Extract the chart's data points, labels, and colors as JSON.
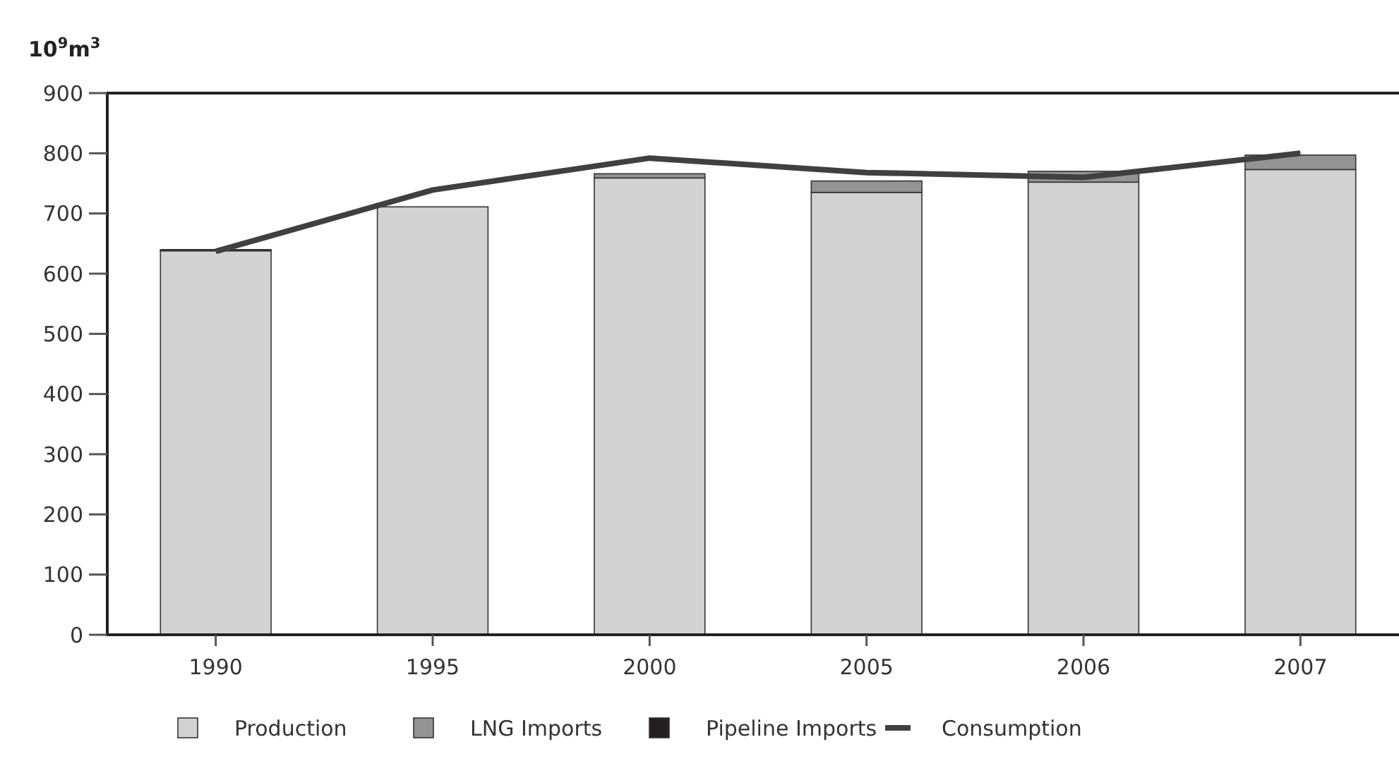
{
  "chart_data": {
    "type": "bar",
    "stacked": true,
    "ylabel": "10$^{9}$m$^{3}$",
    "categories": [
      "1990",
      "1995",
      "2000",
      "2005",
      "2006",
      "2007"
    ],
    "series": [
      {
        "name": "Production",
        "color": "#d1d2d4",
        "values": [
          638,
          711,
          759,
          735,
          752,
          773
        ]
      },
      {
        "name": "LNG Imports",
        "color": "#939393",
        "values": [
          0,
          0,
          7,
          19,
          18,
          24
        ]
      },
      {
        "name": "Pipeline Imports",
        "color": "#231f20",
        "values": [
          2,
          0,
          0,
          0,
          0,
          0
        ]
      },
      {
        "name": "Consumption",
        "type": "line",
        "color": "#404040",
        "values": [
          637,
          739,
          792,
          768,
          760,
          800
        ]
      }
    ],
    "ylim": [
      0,
      900
    ],
    "yticks": [
      0,
      100,
      200,
      300,
      400,
      500,
      600,
      700,
      800,
      900
    ],
    "grid": false,
    "legend": "bottom",
    "marker": "none",
    "line_style": "solid"
  }
}
